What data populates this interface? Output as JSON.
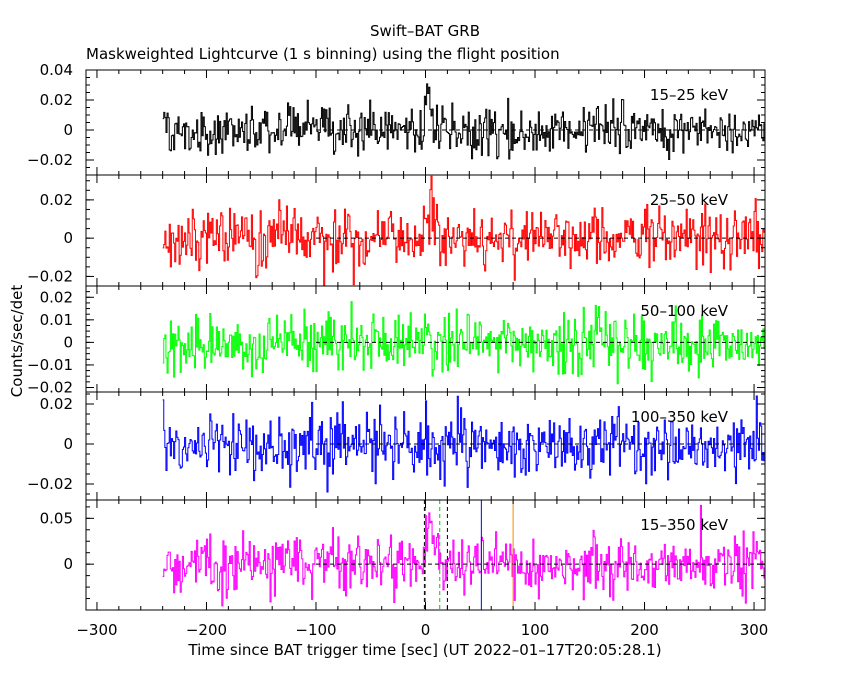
{
  "title": "Swift–BAT GRB",
  "subtitle": "Maskweighted Lightcurve (1 s binning) using the flight position",
  "ylabel": "Counts/sec/det",
  "xlabel": "Time since BAT trigger time [sec] (UT 2022–01–17T20:05:28.1)",
  "chart_data": {
    "type": "line",
    "x_ticks": [
      -300,
      -200,
      -100,
      0,
      100,
      200,
      300
    ],
    "x_tick_labels": [
      "−300",
      "−200",
      "−100",
      "0",
      "100",
      "200",
      "300"
    ],
    "xlim": [
      -310,
      310
    ],
    "binning_s": 1,
    "data_range": [
      -240,
      310
    ],
    "vertical_markers": [
      {
        "x": -1,
        "color": "#000000",
        "style": "dashed"
      },
      {
        "x": 0,
        "color": "#00cc00",
        "style": "dashed"
      },
      {
        "x": 13,
        "color": "#00cc00",
        "style": "dashed"
      },
      {
        "x": 20,
        "color": "#000000",
        "style": "dashed"
      },
      {
        "x": 51,
        "color": "#0000ff",
        "style": "solid"
      },
      {
        "x": 80,
        "color": "#ff8800",
        "style": "solid"
      }
    ],
    "series": [
      {
        "name": "15–25 keV",
        "color": "#000000",
        "ylim": [
          -0.03,
          0.04
        ],
        "y_ticks": [
          -0.02,
          0,
          0.02,
          0.04
        ],
        "y_tick_labels": [
          "−0.02",
          "0",
          "0.02",
          "0.04"
        ],
        "noise_sigma": 0.0075,
        "peak": {
          "x": 2,
          "height": 0.028,
          "width": 3
        }
      },
      {
        "name": "25–50 keV",
        "color": "#ff0000",
        "ylim": [
          -0.025,
          0.033
        ],
        "y_ticks": [
          -0.02,
          0,
          0.02
        ],
        "y_tick_labels": [
          "−0.02",
          "0",
          "0.02"
        ],
        "noise_sigma": 0.0075,
        "peak": {
          "x": 4,
          "height": 0.016,
          "width": 6
        }
      },
      {
        "name": "50–100 keV",
        "color": "#00ff00",
        "ylim": [
          -0.022,
          0.025
        ],
        "y_ticks": [
          -0.02,
          -0.01,
          0,
          0.01,
          0.02
        ],
        "y_tick_labels": [
          "−0.02",
          "−0.01",
          "0",
          "0.01",
          "0.02"
        ],
        "noise_sigma": 0.0068,
        "peak": {
          "x": 0,
          "height": 0,
          "width": 1
        }
      },
      {
        "name": "100–350 keV",
        "color": "#0000ff",
        "ylim": [
          -0.028,
          0.026
        ],
        "y_ticks": [
          -0.02,
          0,
          0.02
        ],
        "y_tick_labels": [
          "−0.02",
          "0",
          "0.02"
        ],
        "noise_sigma": 0.0078,
        "peak": {
          "x": 0,
          "height": 0,
          "width": 1
        }
      },
      {
        "name": "15–350 keV",
        "color": "#ff00ff",
        "ylim": [
          -0.05,
          0.07
        ],
        "y_ticks": [
          0,
          0.05
        ],
        "y_tick_labels": [
          "0",
          "0.05"
        ],
        "noise_sigma": 0.016,
        "peak": {
          "x": 4,
          "height": 0.038,
          "width": 6
        }
      }
    ]
  }
}
